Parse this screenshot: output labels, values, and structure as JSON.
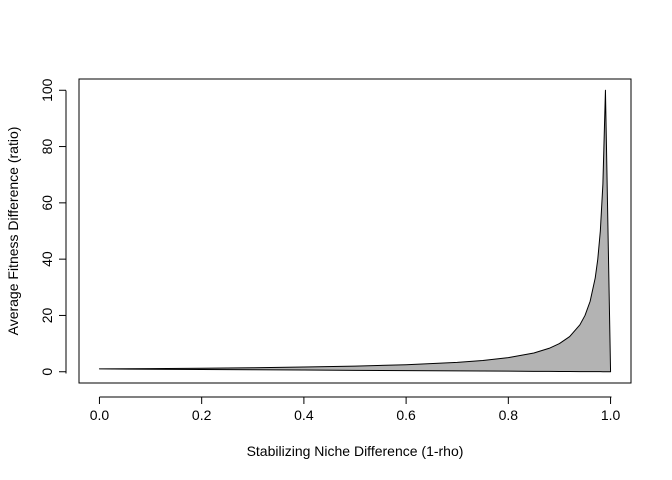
{
  "chart_data": {
    "type": "area",
    "title": "",
    "xlabel": "Stabilizing Niche Difference (1-rho)",
    "ylabel": "Average Fitness Difference (ratio)",
    "xlim": [
      -0.04,
      1.04
    ],
    "ylim": [
      -4,
      104
    ],
    "x_ticks": [
      "0.0",
      "0.2",
      "0.4",
      "0.6",
      "0.8",
      "1.0"
    ],
    "y_ticks": [
      "0",
      "20",
      "40",
      "60",
      "80",
      "100"
    ],
    "grid": false,
    "fill_color": "#b3b3b3",
    "line_color": "#000000",
    "series": [
      {
        "x": [
          0.0,
          0.1,
          0.2,
          0.3,
          0.4,
          0.5,
          0.6,
          0.7,
          0.75,
          0.8,
          0.85,
          0.88,
          0.9,
          0.92,
          0.94,
          0.95,
          0.96,
          0.97,
          0.975,
          0.98,
          0.985,
          0.99,
          1.0
        ],
        "upper": [
          1.0,
          1.11,
          1.25,
          1.43,
          1.67,
          2.0,
          2.5,
          3.33,
          4.0,
          5.0,
          6.67,
          8.33,
          10.0,
          12.5,
          16.67,
          20.0,
          25.0,
          33.33,
          40.0,
          50.0,
          66.67,
          100.0,
          0
        ],
        "lower": [
          1.0,
          0.9,
          0.8,
          0.7,
          0.6,
          0.5,
          0.4,
          0.3,
          0.25,
          0.2,
          0.15,
          0.12,
          0.1,
          0.08,
          0.06,
          0.05,
          0.04,
          0.03,
          0.025,
          0.02,
          0.015,
          0.01,
          0
        ]
      }
    ]
  }
}
